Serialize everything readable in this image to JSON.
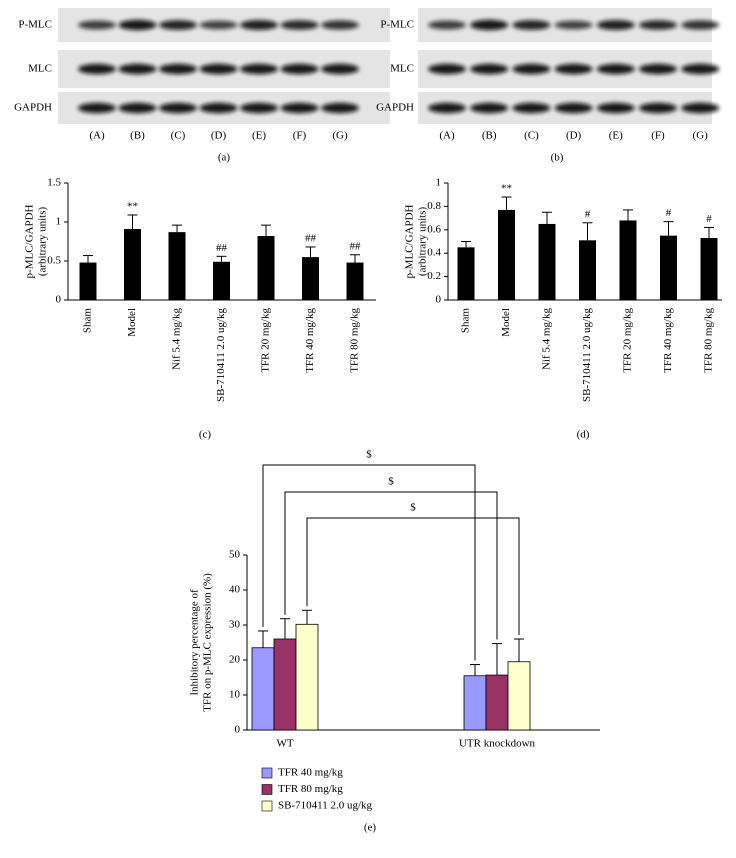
{
  "blots": [
    {
      "caption": "(a)",
      "rows": [
        "P-MLC",
        "MLC",
        "GAPDH"
      ],
      "lanes": [
        "(A)",
        "(B)",
        "(C)",
        "(D)",
        "(E)",
        "(F)",
        "(G)"
      ]
    },
    {
      "caption": "(b)",
      "rows": [
        "P-MLC",
        "MLC",
        "GAPDH"
      ],
      "lanes": [
        "(A)",
        "(B)",
        "(C)",
        "(D)",
        "(E)",
        "(F)",
        "(G)"
      ]
    }
  ],
  "chart_data": [
    {
      "type": "bar",
      "caption": "(c)",
      "ylabel": [
        "p-MLC/GAPDH",
        "(arbitrary units)"
      ],
      "categories": [
        "Sham",
        "Model",
        "Nif 5.4 mg/kg",
        "SB-710411 2.0 ug/kg",
        "TFR 20 mg/kg",
        "TFR 40 mg/kg",
        "TFR 80 mg/kg"
      ],
      "values": [
        0.48,
        0.91,
        0.87,
        0.49,
        0.82,
        0.55,
        0.48
      ],
      "errors": [
        0.09,
        0.18,
        0.09,
        0.07,
        0.14,
        0.13,
        0.1
      ],
      "marks": [
        null,
        "**",
        null,
        "##",
        null,
        "##",
        "##"
      ],
      "color": "#000000",
      "ylim": [
        0,
        1.5
      ],
      "yticks": [
        0,
        0.5,
        1,
        1.5
      ]
    },
    {
      "type": "bar",
      "caption": "(d)",
      "ylabel": [
        "p-MLC/GAPDH",
        "(arbitrary units)"
      ],
      "categories": [
        "Sham",
        "Model",
        "Nif 5.4 mg/kg",
        "SB-710411 2.0 ug/kg",
        "TFR 20 mg/kg",
        "TFR 40 mg/kg",
        "TFR 80 mg/kg"
      ],
      "values": [
        0.45,
        0.77,
        0.65,
        0.51,
        0.68,
        0.55,
        0.53
      ],
      "errors": [
        0.05,
        0.11,
        0.1,
        0.15,
        0.09,
        0.12,
        0.09
      ],
      "marks": [
        null,
        "**",
        null,
        "#",
        null,
        "#",
        "#"
      ],
      "color": "#000000",
      "ylim": [
        0,
        1
      ],
      "yticks": [
        0,
        0.2,
        0.4,
        0.6,
        0.8,
        1
      ]
    },
    {
      "type": "grouped-bar",
      "caption": "(e)",
      "ylabel": [
        "Inhibitory percentage of",
        "TFR on p-MLC expression (%)"
      ],
      "categories": [
        "WT",
        "UTR knockdown"
      ],
      "series": [
        {
          "name": "TFR 40 mg/kg",
          "color": "#9999ff",
          "values": [
            23.5,
            15.5
          ],
          "errors": [
            4.8,
            3.2
          ]
        },
        {
          "name": "TFR 80 mg/kg",
          "color": "#993366",
          "values": [
            26,
            15.7
          ],
          "errors": [
            5.8,
            9
          ]
        },
        {
          "name": "SB-710411 2.0 ug/kg",
          "color": "#ffffcc",
          "values": [
            30.2,
            19.5
          ],
          "errors": [
            4,
            6.5
          ]
        }
      ],
      "significance": [
        "$",
        "$",
        "$"
      ],
      "ylim": [
        0,
        50
      ],
      "yticks": [
        0,
        10,
        20,
        30,
        40,
        50
      ]
    }
  ]
}
